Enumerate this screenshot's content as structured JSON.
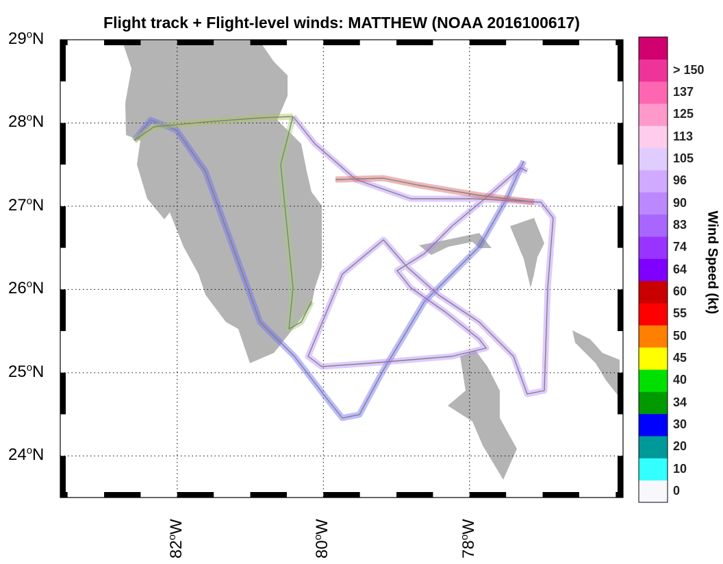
{
  "title": "Flight track + Flight-level winds: MATTHEW (NOAA 2016100617)",
  "map": {
    "lat_range": [
      23.5,
      29
    ],
    "lon_range": [
      -83.6,
      -75.9
    ],
    "lat_ticks": [
      {
        "value": 29,
        "deg": "29",
        "hemi": "N"
      },
      {
        "value": 28,
        "deg": "28",
        "hemi": "N"
      },
      {
        "value": 27,
        "deg": "27",
        "hemi": "N"
      },
      {
        "value": 26,
        "deg": "26",
        "hemi": "N"
      },
      {
        "value": 25,
        "deg": "25",
        "hemi": "N"
      },
      {
        "value": 24,
        "deg": "24",
        "hemi": "N"
      }
    ],
    "lon_ticks": [
      {
        "value": -82,
        "deg": "82",
        "hemi": "W"
      },
      {
        "value": -80,
        "deg": "80",
        "hemi": "W"
      },
      {
        "value": -78,
        "deg": "78",
        "hemi": "W"
      }
    ],
    "land_color": "#b4b4b4",
    "track_color": "#808080",
    "grid": true
  },
  "colorbar": {
    "title": "Wind Speed (kt)",
    "colors": [
      "#f7f7fc",
      "#33ffff",
      "#009999",
      "#0000ff",
      "#009900",
      "#00e000",
      "#ffff00",
      "#ff8000",
      "#ff0000",
      "#c80000",
      "#8000ff",
      "#9933ff",
      "#a866ff",
      "#bb88ff",
      "#cfaaff",
      "#e0ccff",
      "#ffccee",
      "#ff99cc",
      "#ff66b2",
      "#ee3399",
      "#d00070"
    ],
    "labels": [
      "0",
      "10",
      "20",
      "30",
      "34",
      "40",
      "45",
      "50",
      "55",
      "60",
      "64",
      "74",
      "83",
      "90",
      "96",
      "105",
      "113",
      "125",
      "137",
      "> 150"
    ]
  }
}
